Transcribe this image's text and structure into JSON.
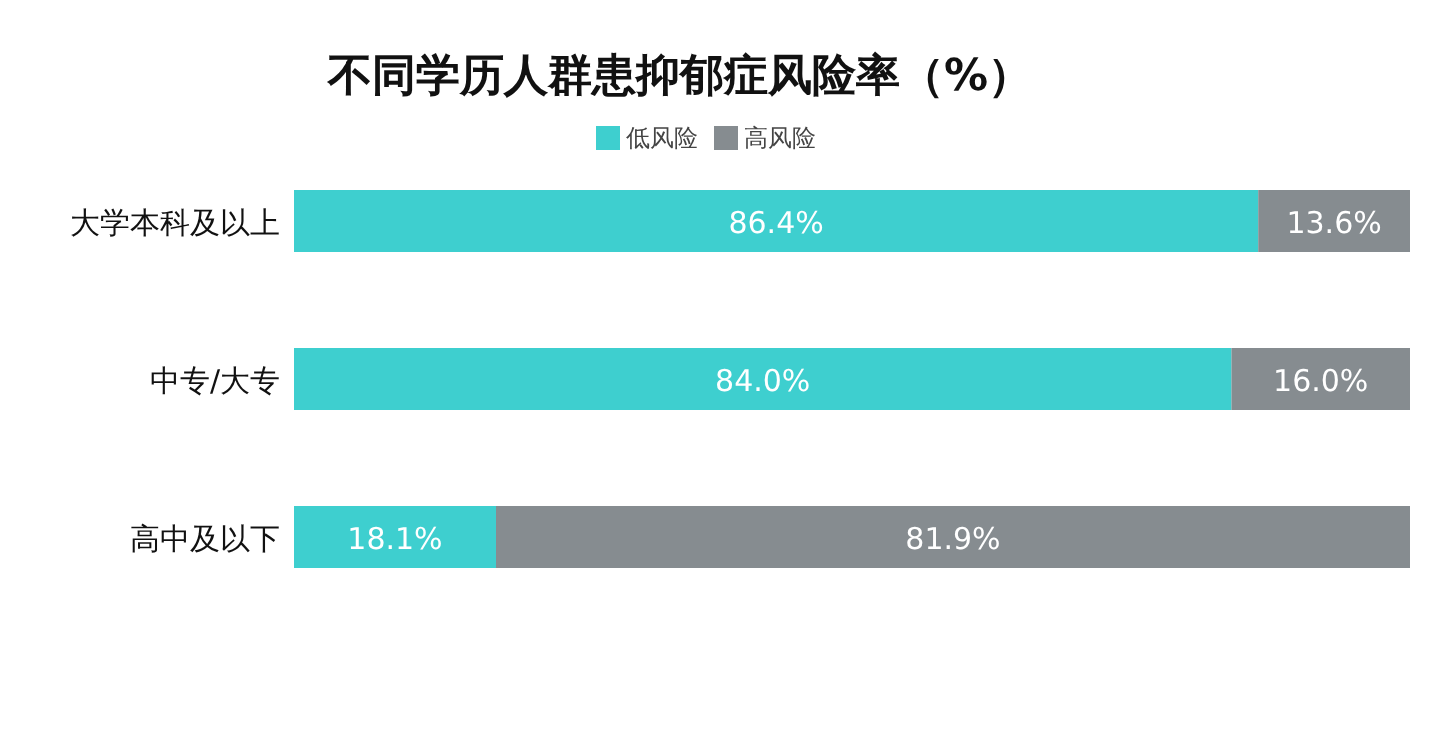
{
  "chart_data": {
    "type": "bar",
    "orientation": "horizontal",
    "stacked": true,
    "title": "不同学历人群患抑郁症风险率（%）",
    "categories": [
      "大学本科及以上",
      "中专/大专",
      "高中及以下"
    ],
    "xlim": [
      0,
      100
    ],
    "legend": "top",
    "series": [
      {
        "name": "低风险",
        "color": "#3ecfcf",
        "values": [
          86.4,
          84.0,
          18.1
        ],
        "value_labels": [
          "86.4%",
          "84.0%",
          "18.1%"
        ]
      },
      {
        "name": "高风险",
        "color": "#868c90",
        "values": [
          13.6,
          16.0,
          81.9
        ],
        "value_labels": [
          "13.6%",
          "16.0%",
          "81.9%"
        ]
      }
    ]
  }
}
